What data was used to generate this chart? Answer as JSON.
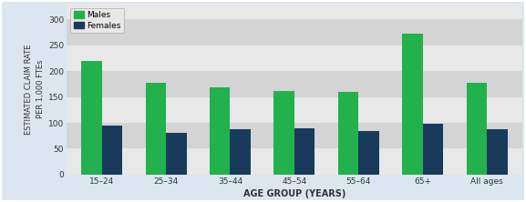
{
  "categories": [
    "15–24",
    "25–34",
    "35–44",
    "45–54",
    "55–64",
    "65+",
    "All ages"
  ],
  "males": [
    220,
    178,
    168,
    162,
    160,
    272,
    178
  ],
  "females": [
    95,
    80,
    87,
    90,
    84,
    98,
    87
  ],
  "male_color": "#22b14c",
  "female_color": "#1a3a5c",
  "ylabel_line1": "ESTIMATED CLAIM RATE",
  "ylabel_line2": "PER 1,000 FTEs",
  "xlabel": "AGE GROUP (YEARS)",
  "ylim": [
    0,
    330
  ],
  "yticks": [
    0,
    50,
    100,
    150,
    200,
    250,
    300
  ],
  "bg_outer": "#dce6f0",
  "bg_plot_light": "#e8e8e8",
  "bg_plot_dark": "#d8d8d8",
  "bar_width": 0.32,
  "legend_labels": [
    "Males",
    "Females"
  ],
  "grid_color": "#ffffff",
  "border_color": "#6baed6",
  "tick_label_color": "#333333",
  "axis_label_color": "#333333",
  "band_ranges": [
    [
      0,
      50
    ],
    [
      100,
      150
    ],
    [
      200,
      250
    ],
    [
      300,
      330
    ]
  ],
  "band_color_light": "#e8e8e8",
  "band_color_dark": "#d4d4d4"
}
